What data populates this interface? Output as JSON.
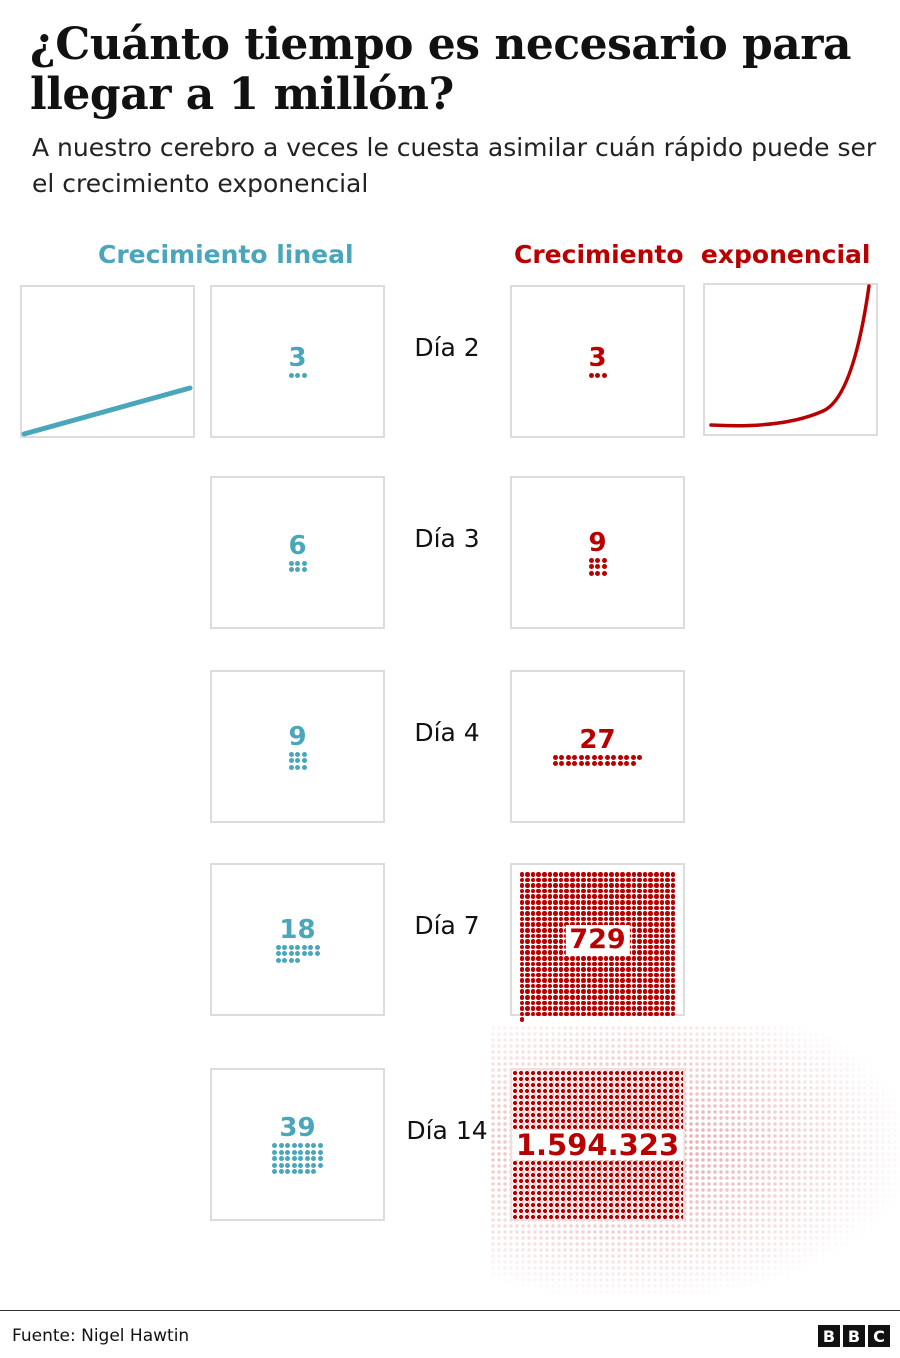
{
  "title": "¿Cuánto tiempo es necesario para llegar a 1 millón?",
  "subtitle": "A nuestro cerebro a veces le cuesta asimilar cuán rápido puede ser el crecimiento exponencial",
  "headers": {
    "linear": "Crecimiento lineal",
    "exponential": "Crecimiento  exponencial"
  },
  "colors": {
    "linear": "#4aa6ba",
    "exponential": "#b80000"
  },
  "rows": [
    {
      "day": "Día 2",
      "linear": "3",
      "linear_count": 3,
      "exp": "3",
      "exp_count": 3
    },
    {
      "day": "Día 3",
      "linear": "6",
      "linear_count": 6,
      "exp": "9",
      "exp_count": 9
    },
    {
      "day": "Día 4",
      "linear": "9",
      "linear_count": 9,
      "exp": "27",
      "exp_count": 27
    },
    {
      "day": "Día 7",
      "linear": "18",
      "linear_count": 18,
      "exp": "729",
      "exp_count": 729
    },
    {
      "day": "Día 14",
      "linear": "39",
      "linear_count": 39,
      "exp": "1.594.323",
      "exp_count": 1594323
    }
  ],
  "footer": {
    "source": "Fuente: Nigel Hawtin",
    "logo": [
      "B",
      "B",
      "C"
    ]
  }
}
